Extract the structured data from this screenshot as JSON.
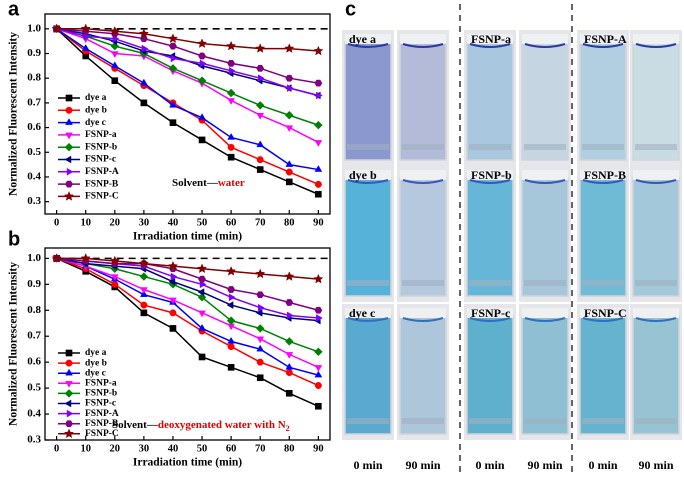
{
  "chart_data": [
    {
      "type": "line",
      "panel": "a",
      "xlabel": "Irradiation time (min)",
      "ylabel": "Normalized Fluorescent Intensity",
      "x": [
        0,
        10,
        20,
        30,
        40,
        50,
        60,
        70,
        80,
        90
      ],
      "xlim": [
        -4,
        94
      ],
      "xticks": [
        0,
        10,
        20,
        30,
        40,
        50,
        60,
        70,
        80,
        90
      ],
      "ylim": [
        0.25,
        1.06
      ],
      "yticks": [
        0.3,
        0.4,
        0.5,
        0.6,
        0.7,
        0.8,
        0.9,
        {
          "value": 1,
          "label": "1.0"
        }
      ],
      "reference_line": 1,
      "annotation": {
        "prefix": "Solvent—",
        "highlight": "water"
      },
      "series": [
        {
          "name": "dye a",
          "color": "#000000",
          "marker": "square",
          "values": [
            1.0,
            0.89,
            0.79,
            0.7,
            0.62,
            0.55,
            0.48,
            0.43,
            0.38,
            0.33
          ]
        },
        {
          "name": "dye b",
          "color": "#ff0000",
          "marker": "circle",
          "values": [
            1.0,
            0.91,
            0.84,
            0.77,
            0.7,
            0.63,
            0.52,
            0.47,
            0.42,
            0.37
          ]
        },
        {
          "name": "dye c",
          "color": "#0000ff",
          "marker": "up",
          "values": [
            1.0,
            0.92,
            0.85,
            0.78,
            0.69,
            0.64,
            0.56,
            0.53,
            0.45,
            0.43
          ]
        },
        {
          "name": "FSNP-a",
          "color": "#ff00ff",
          "marker": "down",
          "values": [
            1.0,
            0.96,
            0.9,
            0.89,
            0.83,
            0.78,
            0.71,
            0.65,
            0.6,
            0.54
          ]
        },
        {
          "name": "FSNP-b",
          "color": "#008000",
          "marker": "diamond",
          "values": [
            1.0,
            0.97,
            0.93,
            0.9,
            0.84,
            0.79,
            0.74,
            0.69,
            0.65,
            0.61
          ]
        },
        {
          "name": "FSNP-c",
          "color": "#000080",
          "marker": "left",
          "values": [
            1.0,
            0.98,
            0.95,
            0.91,
            0.89,
            0.85,
            0.82,
            0.79,
            0.76,
            0.73
          ]
        },
        {
          "name": "FSNP-A",
          "color": "#8000ff",
          "marker": "right",
          "values": [
            1.0,
            0.97,
            0.96,
            0.92,
            0.88,
            0.86,
            0.83,
            0.8,
            0.76,
            0.73
          ]
        },
        {
          "name": "FSNP-B",
          "color": "#800080",
          "marker": "hexagon",
          "values": [
            1.0,
            0.99,
            0.98,
            0.96,
            0.93,
            0.89,
            0.86,
            0.84,
            0.8,
            0.78
          ]
        },
        {
          "name": "FSNP-C",
          "color": "#800000",
          "marker": "star",
          "values": [
            1.0,
            1.0,
            0.99,
            0.98,
            0.96,
            0.94,
            0.93,
            0.92,
            0.92,
            0.91
          ]
        }
      ]
    },
    {
      "type": "line",
      "panel": "b",
      "xlabel": "Irradiation time (min)",
      "ylabel": "Normalized Fluorescent Intensity",
      "x": [
        0,
        10,
        20,
        30,
        40,
        50,
        60,
        70,
        80,
        90
      ],
      "xlim": [
        -4,
        94
      ],
      "xticks": [
        0,
        10,
        20,
        30,
        40,
        50,
        60,
        70,
        80,
        90
      ],
      "ylim": [
        0.3,
        1.04
      ],
      "yticks": [
        0.3,
        0.4,
        0.5,
        0.6,
        0.7,
        0.8,
        0.9,
        {
          "value": 1,
          "label": "1.0"
        }
      ],
      "reference_line": 1,
      "annotation": {
        "prefix": "Solvent—",
        "highlight": "deoxygenated water with N",
        "highlight_sub": "2"
      },
      "series": [
        {
          "name": "dye a",
          "color": "#000000",
          "marker": "square",
          "values": [
            1.0,
            0.95,
            0.89,
            0.79,
            0.73,
            0.62,
            0.58,
            0.54,
            0.48,
            0.43
          ]
        },
        {
          "name": "dye b",
          "color": "#ff0000",
          "marker": "circle",
          "values": [
            1.0,
            0.96,
            0.9,
            0.82,
            0.79,
            0.72,
            0.66,
            0.6,
            0.56,
            0.51
          ]
        },
        {
          "name": "dye c",
          "color": "#0000ff",
          "marker": "up",
          "values": [
            1.0,
            0.97,
            0.92,
            0.86,
            0.83,
            0.73,
            0.68,
            0.65,
            0.58,
            0.55
          ]
        },
        {
          "name": "FSNP-a",
          "color": "#ff00ff",
          "marker": "down",
          "values": [
            1.0,
            0.97,
            0.93,
            0.88,
            0.84,
            0.79,
            0.74,
            0.69,
            0.63,
            0.58
          ]
        },
        {
          "name": "FSNP-b",
          "color": "#008000",
          "marker": "diamond",
          "values": [
            1.0,
            0.98,
            0.96,
            0.93,
            0.9,
            0.85,
            0.76,
            0.73,
            0.68,
            0.64
          ]
        },
        {
          "name": "FSNP-c",
          "color": "#000080",
          "marker": "left",
          "values": [
            1.0,
            0.98,
            0.97,
            0.96,
            0.91,
            0.87,
            0.82,
            0.79,
            0.77,
            0.76
          ]
        },
        {
          "name": "FSNP-A",
          "color": "#8000ff",
          "marker": "right",
          "values": [
            1.0,
            0.99,
            0.98,
            0.97,
            0.93,
            0.9,
            0.85,
            0.81,
            0.78,
            0.77
          ]
        },
        {
          "name": "FSNP-B",
          "color": "#800080",
          "marker": "hexagon",
          "values": [
            1.0,
            0.99,
            0.98,
            0.98,
            0.96,
            0.92,
            0.88,
            0.86,
            0.83,
            0.8
          ]
        },
        {
          "name": "FSNP-C",
          "color": "#800000",
          "marker": "star",
          "values": [
            1.0,
            1.0,
            0.99,
            0.98,
            0.97,
            0.96,
            0.95,
            0.94,
            0.93,
            0.92
          ]
        }
      ]
    }
  ],
  "photos": {
    "panel": "c",
    "rows": [
      [
        "dye a",
        "FSNP-a",
        "FSNP-A"
      ],
      [
        "dye b",
        "FSNP-b",
        "FSNP-B"
      ],
      [
        "dye c",
        "FSNP-c",
        "FSNP-C"
      ]
    ],
    "columns": [
      "0 min",
      "90 min",
      "0 min",
      "90 min",
      "0 min",
      "90 min"
    ]
  }
}
